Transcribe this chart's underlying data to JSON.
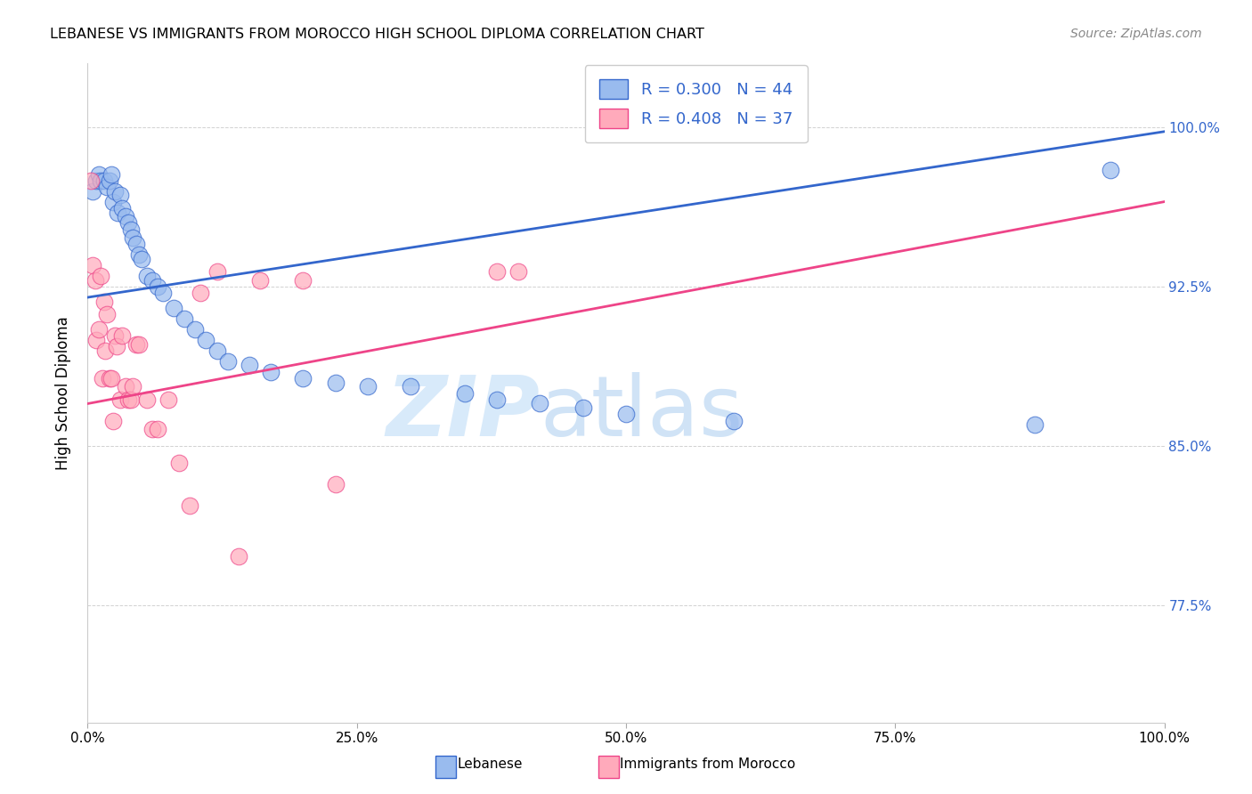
{
  "title": "LEBANESE VS IMMIGRANTS FROM MOROCCO HIGH SCHOOL DIPLOMA CORRELATION CHART",
  "source": "Source: ZipAtlas.com",
  "ylabel": "High School Diploma",
  "xlim": [
    0.0,
    1.0
  ],
  "ylim": [
    0.72,
    1.03
  ],
  "yticks": [
    0.775,
    0.85,
    0.925,
    1.0
  ],
  "ytick_labels": [
    "77.5%",
    "85.0%",
    "92.5%",
    "100.0%"
  ],
  "xtick_labels": [
    "0.0%",
    "25.0%",
    "50.0%",
    "75.0%",
    "100.0%"
  ],
  "xtick_positions": [
    0.0,
    0.25,
    0.5,
    0.75,
    1.0
  ],
  "legend_R_blue": "R = 0.300",
  "legend_N_blue": "N = 44",
  "legend_R_pink": "R = 0.408",
  "legend_N_pink": "N = 37",
  "blue_color": "#99BBEE",
  "pink_color": "#FFAABB",
  "trendline_blue": "#3366CC",
  "trendline_pink": "#EE4488",
  "watermark_zip": "ZIP",
  "watermark_atlas": "atlas",
  "watermark_color": "#D8EAFA",
  "blue_scatter_x": [
    0.005,
    0.008,
    0.01,
    0.012,
    0.015,
    0.018,
    0.02,
    0.022,
    0.024,
    0.025,
    0.028,
    0.03,
    0.032,
    0.035,
    0.038,
    0.04,
    0.042,
    0.045,
    0.048,
    0.05,
    0.055,
    0.06,
    0.065,
    0.07,
    0.08,
    0.09,
    0.1,
    0.11,
    0.12,
    0.13,
    0.15,
    0.17,
    0.2,
    0.23,
    0.26,
    0.3,
    0.35,
    0.38,
    0.42,
    0.46,
    0.5,
    0.6,
    0.88,
    0.95
  ],
  "blue_scatter_y": [
    0.97,
    0.975,
    0.978,
    0.975,
    0.975,
    0.972,
    0.975,
    0.978,
    0.965,
    0.97,
    0.96,
    0.968,
    0.962,
    0.958,
    0.955,
    0.952,
    0.948,
    0.945,
    0.94,
    0.938,
    0.93,
    0.928,
    0.925,
    0.922,
    0.915,
    0.91,
    0.905,
    0.9,
    0.895,
    0.89,
    0.888,
    0.885,
    0.882,
    0.88,
    0.878,
    0.878,
    0.875,
    0.872,
    0.87,
    0.868,
    0.865,
    0.862,
    0.86,
    0.98
  ],
  "pink_scatter_x": [
    0.003,
    0.005,
    0.007,
    0.008,
    0.01,
    0.012,
    0.014,
    0.015,
    0.016,
    0.018,
    0.02,
    0.022,
    0.024,
    0.025,
    0.027,
    0.03,
    0.032,
    0.035,
    0.038,
    0.04,
    0.042,
    0.045,
    0.048,
    0.055,
    0.06,
    0.065,
    0.075,
    0.085,
    0.095,
    0.105,
    0.12,
    0.14,
    0.16,
    0.2,
    0.23,
    0.38,
    0.4
  ],
  "pink_scatter_y": [
    0.975,
    0.935,
    0.928,
    0.9,
    0.905,
    0.93,
    0.882,
    0.918,
    0.895,
    0.912,
    0.882,
    0.882,
    0.862,
    0.902,
    0.897,
    0.872,
    0.902,
    0.878,
    0.872,
    0.872,
    0.878,
    0.898,
    0.898,
    0.872,
    0.858,
    0.858,
    0.872,
    0.842,
    0.822,
    0.922,
    0.932,
    0.798,
    0.928,
    0.928,
    0.832,
    0.932,
    0.932
  ],
  "blue_trendline_x": [
    0.0,
    1.0
  ],
  "blue_trendline_y_start": 0.92,
  "blue_trendline_y_end": 0.998,
  "pink_trendline_y_start": 0.87,
  "pink_trendline_y_end": 0.965
}
